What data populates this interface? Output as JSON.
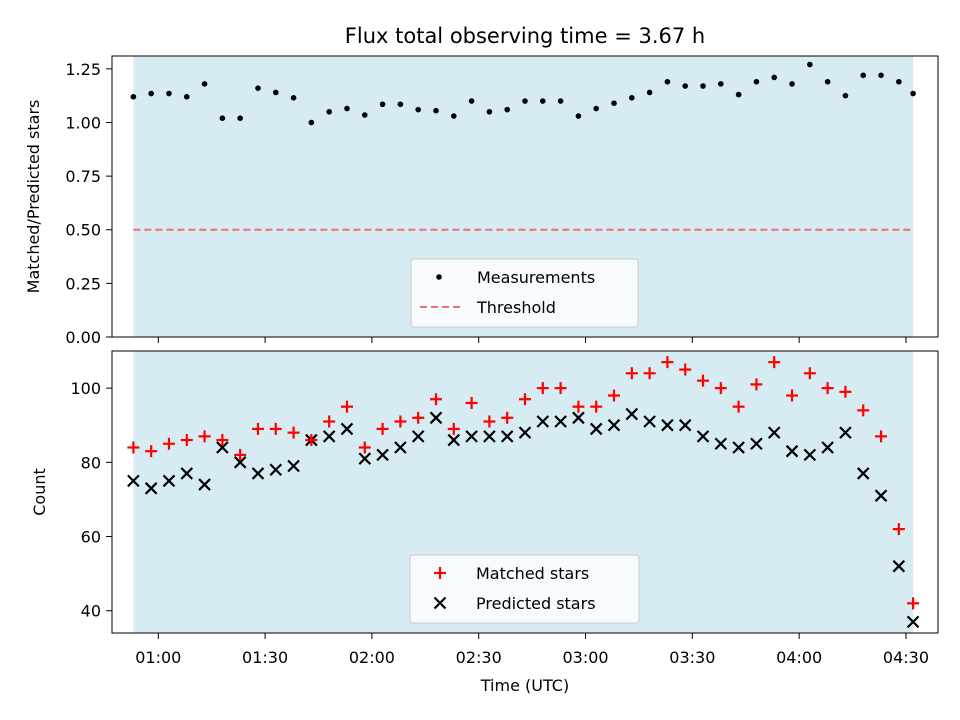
{
  "title": "Flux total observing time = 3.67 h",
  "colors": {
    "span_fill": "#add8e6",
    "measurement": "#000000",
    "threshold": "#f07070",
    "matched": "#ff0000",
    "predicted": "#000000"
  },
  "chart_data": [
    {
      "type": "scatter",
      "ylabel": "Matched/Predicted stars",
      "ylim": [
        0,
        1.31
      ],
      "yticks": [
        0.0,
        0.25,
        0.5,
        0.75,
        1.0,
        1.25
      ],
      "ytick_labels": [
        "0.00",
        "0.25",
        "0.50",
        "0.75",
        "1.00",
        "1.25"
      ],
      "xlim": [
        "00:47",
        "04:39"
      ],
      "observing_span": [
        "00:53",
        "04:32"
      ],
      "legend_position": "lower center",
      "threshold": 0.5,
      "series": [
        {
          "name": "Measurements",
          "marker": "dot",
          "x": [
            "00:53",
            "00:58",
            "01:03",
            "01:08",
            "01:13",
            "01:18",
            "01:23",
            "01:28",
            "01:33",
            "01:38",
            "01:43",
            "01:48",
            "01:53",
            "01:58",
            "02:03",
            "02:08",
            "02:13",
            "02:18",
            "02:23",
            "02:28",
            "02:33",
            "02:38",
            "02:43",
            "02:48",
            "02:53",
            "02:58",
            "03:03",
            "03:08",
            "03:13",
            "03:18",
            "03:23",
            "03:28",
            "03:33",
            "03:38",
            "03:43",
            "03:48",
            "03:53",
            "03:58",
            "04:03",
            "04:08",
            "04:13",
            "04:18",
            "04:23",
            "04:28",
            "04:32"
          ],
          "y": [
            1.12,
            1.135,
            1.135,
            1.12,
            1.18,
            1.02,
            1.02,
            1.16,
            1.14,
            1.115,
            1.0,
            1.05,
            1.065,
            1.035,
            1.085,
            1.085,
            1.06,
            1.055,
            1.03,
            1.1,
            1.05,
            1.06,
            1.1,
            1.1,
            1.1,
            1.03,
            1.065,
            1.09,
            1.115,
            1.14,
            1.19,
            1.17,
            1.17,
            1.18,
            1.13,
            1.19,
            1.21,
            1.18,
            1.27,
            1.19,
            1.125,
            1.22,
            1.22,
            1.19,
            1.135
          ]
        },
        {
          "name": "Threshold",
          "marker": "dashed-line",
          "y": 0.5
        }
      ]
    },
    {
      "type": "scatter",
      "ylabel": "Count",
      "xlabel": "Time (UTC)",
      "ylim": [
        34,
        110
      ],
      "yticks": [
        40,
        60,
        80,
        100
      ],
      "ytick_labels": [
        "40",
        "60",
        "80",
        "100"
      ],
      "xlim": [
        "00:47",
        "04:39"
      ],
      "xticks": [
        "01:00",
        "01:30",
        "02:00",
        "02:30",
        "03:00",
        "03:30",
        "04:00",
        "04:30"
      ],
      "xtick_labels": [
        "01:00",
        "01:30",
        "02:00",
        "02:30",
        "03:00",
        "03:30",
        "04:00",
        "04:30"
      ],
      "observing_span": [
        "00:53",
        "04:32"
      ],
      "legend_position": "lower center",
      "series": [
        {
          "name": "Matched stars",
          "marker": "plus",
          "x": [
            "00:53",
            "00:58",
            "01:03",
            "01:08",
            "01:13",
            "01:18",
            "01:23",
            "01:28",
            "01:33",
            "01:38",
            "01:43",
            "01:48",
            "01:53",
            "01:58",
            "02:03",
            "02:08",
            "02:13",
            "02:18",
            "02:23",
            "02:28",
            "02:33",
            "02:38",
            "02:43",
            "02:48",
            "02:53",
            "02:58",
            "03:03",
            "03:08",
            "03:13",
            "03:18",
            "03:23",
            "03:28",
            "03:33",
            "03:38",
            "03:43",
            "03:48",
            "03:53",
            "03:58",
            "04:03",
            "04:08",
            "04:13",
            "04:18",
            "04:23",
            "04:28",
            "04:32"
          ],
          "y": [
            84,
            83,
            85,
            86,
            87,
            86,
            82,
            89,
            89,
            88,
            86,
            91,
            95,
            84,
            89,
            91,
            92,
            97,
            89,
            96,
            91,
            92,
            97,
            100,
            100,
            95,
            95,
            98,
            104,
            104,
            107,
            105,
            102,
            100,
            95,
            101,
            107,
            98,
            104,
            100,
            99,
            94,
            87,
            62,
            42
          ]
        },
        {
          "name": "Predicted stars",
          "marker": "x",
          "x": [
            "00:53",
            "00:58",
            "01:03",
            "01:08",
            "01:13",
            "01:18",
            "01:23",
            "01:28",
            "01:33",
            "01:38",
            "01:43",
            "01:48",
            "01:53",
            "01:58",
            "02:03",
            "02:08",
            "02:13",
            "02:18",
            "02:23",
            "02:28",
            "02:33",
            "02:38",
            "02:43",
            "02:48",
            "02:53",
            "02:58",
            "03:03",
            "03:08",
            "03:13",
            "03:18",
            "03:23",
            "03:28",
            "03:33",
            "03:38",
            "03:43",
            "03:48",
            "03:53",
            "03:58",
            "04:03",
            "04:08",
            "04:13",
            "04:18",
            "04:23",
            "04:28",
            "04:32"
          ],
          "y": [
            75,
            73,
            75,
            77,
            74,
            84,
            80,
            77,
            78,
            79,
            86,
            87,
            89,
            81,
            82,
            84,
            87,
            92,
            86,
            87,
            87,
            87,
            88,
            91,
            91,
            92,
            89,
            90,
            93,
            91,
            90,
            90,
            87,
            85,
            84,
            85,
            88,
            83,
            82,
            84,
            88,
            77,
            71,
            52,
            37
          ]
        }
      ]
    }
  ]
}
